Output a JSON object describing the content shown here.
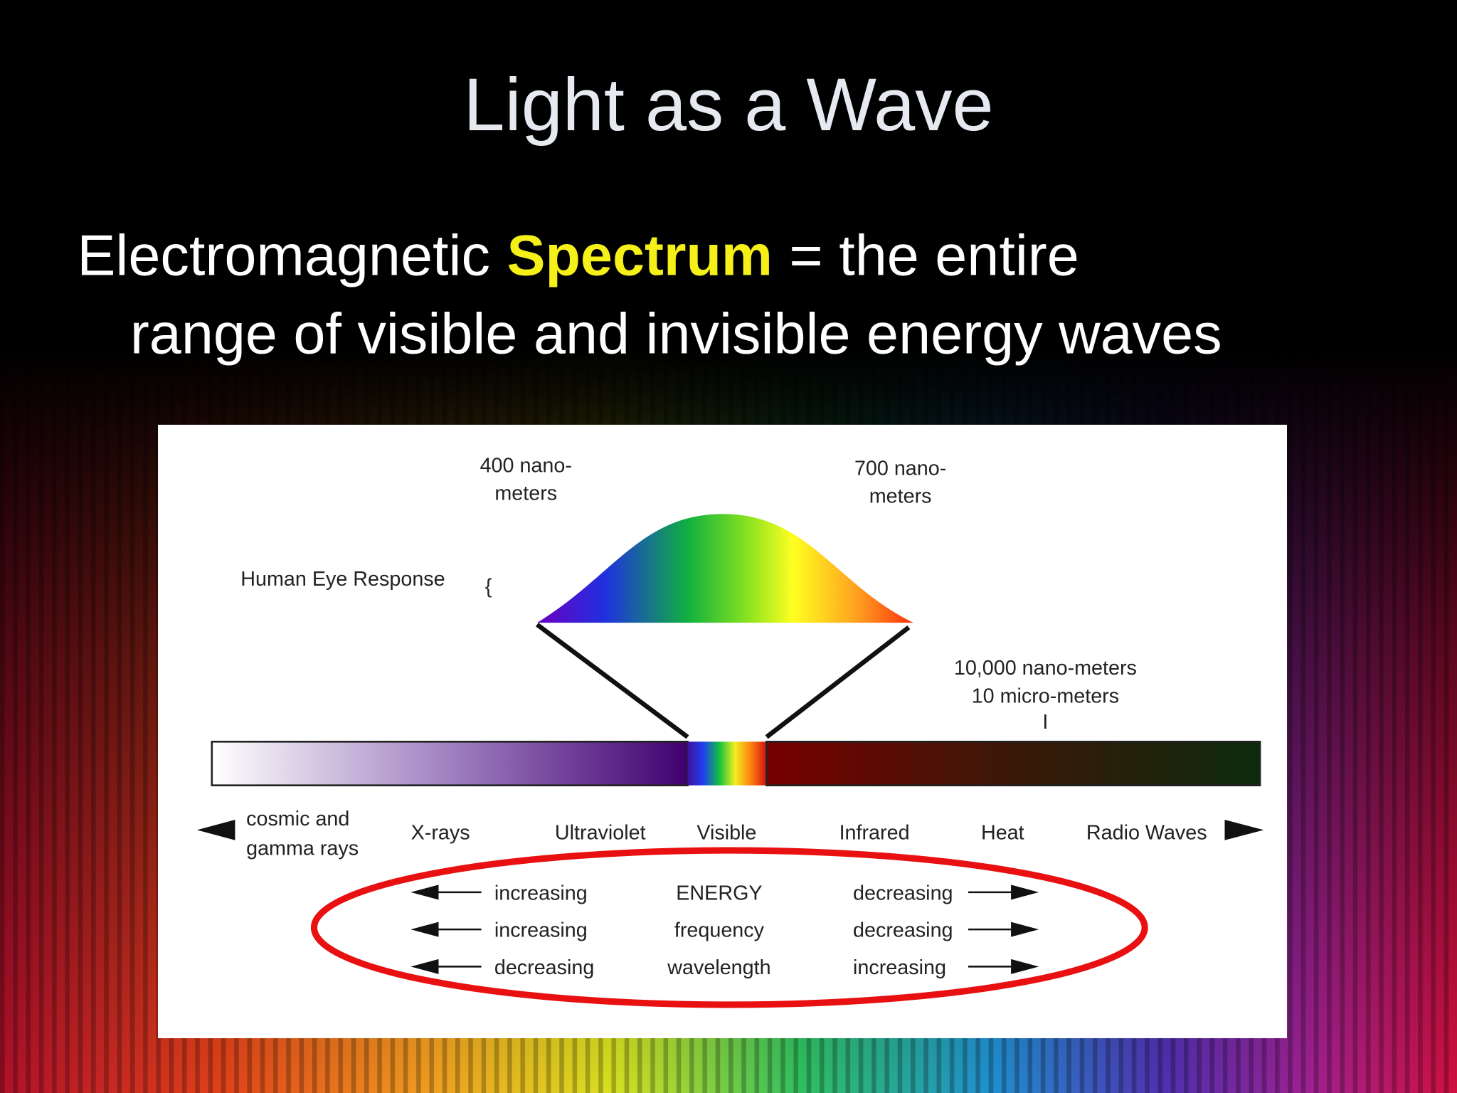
{
  "title": "Light as a Wave",
  "definition": {
    "term": "Electromagnetic",
    "highlight": "Spectrum",
    "rest": "= the entire",
    "line2": "range of visible and invisible energy waves"
  },
  "diagram": {
    "short_end": [
      "400 nano-",
      "meters"
    ],
    "long_end": [
      "700 nano-",
      "meters"
    ],
    "eye_response": "Human Eye Response",
    "brace": "{",
    "ir_mark": [
      "10,000 nano-meters",
      "10 micro-meters",
      "I"
    ],
    "regions": [
      [
        "cosmic and",
        "gamma rays"
      ],
      "X-rays",
      "Ultraviolet",
      "Visible",
      "Infrared",
      "Heat",
      "Radio Waves"
    ],
    "comparisons": [
      {
        "left": "increasing",
        "property": "ENERGY",
        "right": "decreasing"
      },
      {
        "left": "increasing",
        "property": "frequency",
        "right": "decreasing"
      },
      {
        "left": "decreasing",
        "property": "wavelength",
        "right": "increasing"
      }
    ]
  }
}
